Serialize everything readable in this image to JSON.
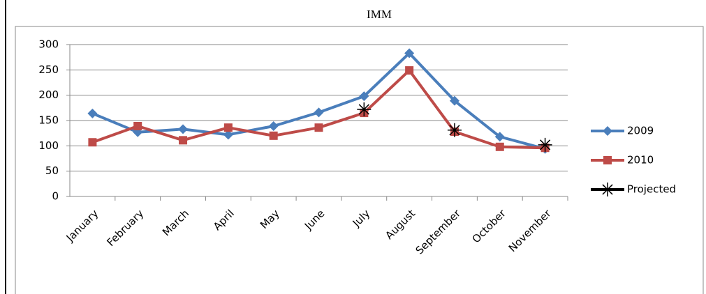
{
  "chart_data": {
    "type": "line",
    "title": "IMM",
    "categories": [
      "January",
      "February",
      "March",
      "April",
      "May",
      "June",
      "July",
      "August",
      "September",
      "October",
      "November"
    ],
    "series": [
      {
        "name": "2009",
        "color": "#4a7ebb",
        "marker": "diamond",
        "values": [
          164,
          127,
          133,
          122,
          139,
          166,
          198,
          283,
          189,
          118,
          94
        ]
      },
      {
        "name": "2010",
        "color": "#be4b48",
        "marker": "square",
        "values": [
          107,
          139,
          111,
          136,
          120,
          136,
          165,
          249,
          128,
          98,
          96
        ]
      },
      {
        "name": "Projected",
        "color": "#000000",
        "marker": "asterisk",
        "values": [
          null,
          null,
          null,
          null,
          null,
          null,
          172,
          null,
          131,
          null,
          102
        ]
      }
    ],
    "ylim": [
      0,
      300
    ],
    "yticks": [
      0,
      50,
      100,
      150,
      200,
      250,
      300
    ],
    "grid": true,
    "legend": "right"
  }
}
